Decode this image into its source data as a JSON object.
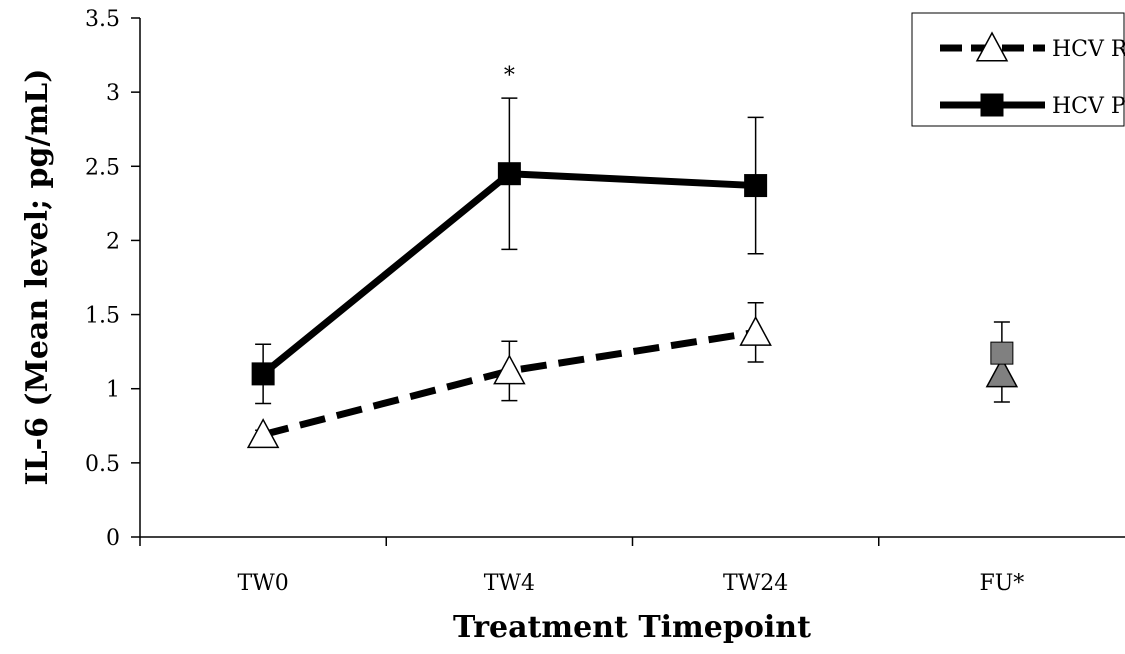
{
  "chart_data": {
    "type": "line",
    "xlabel": "Treatment Timepoint",
    "ylabel": "IL-6 (Mean level; pg/mL)",
    "categories": [
      "TW0",
      "TW4",
      "TW24",
      "FU*"
    ],
    "ylim": [
      0,
      3.5
    ],
    "yticks": [
      "0",
      "0.5",
      "1",
      "1.5",
      "2",
      "2.5",
      "3",
      "3.5"
    ],
    "legend_position": "top-right",
    "grid": false,
    "series": [
      {
        "name": "HCV RF",
        "marker": "triangle-open",
        "line": "dashed",
        "values": [
          0.69,
          1.12,
          1.38,
          null
        ],
        "err": [
          0.03,
          0.2,
          0.2,
          null
        ]
      },
      {
        "name": "HCV PF",
        "marker": "square-filled",
        "line": "solid",
        "values": [
          1.1,
          2.45,
          2.37,
          null
        ],
        "err": [
          0.2,
          0.51,
          0.46,
          null
        ]
      }
    ],
    "followup": {
      "category": "FU*",
      "triangle": 1.1,
      "square": 1.24,
      "err_high": 1.45,
      "err_low": 0.91,
      "color": "#808080"
    },
    "annotations": [
      {
        "text": "*",
        "category": "TW4",
        "y": 3.12
      }
    ]
  }
}
